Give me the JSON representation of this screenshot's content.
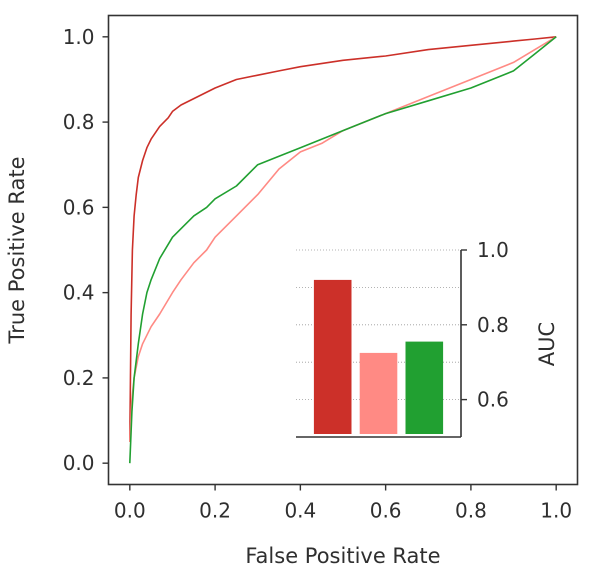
{
  "chart_data": [
    {
      "type": "line",
      "title": "",
      "xlabel": "False Positive Rate",
      "ylabel": "True Positive Rate",
      "xlim": [
        -0.05,
        1.05
      ],
      "ylim": [
        -0.05,
        1.05
      ],
      "x_ticks": [
        "0.0",
        "0.2",
        "0.4",
        "0.6",
        "0.8",
        "1.0"
      ],
      "y_ticks": [
        "0.0",
        "0.2",
        "0.4",
        "0.6",
        "0.8",
        "1.0"
      ],
      "grid": false,
      "legend": "none",
      "series": [
        {
          "color": "#cc3029",
          "x": [
            0,
            0.003,
            0.006,
            0.01,
            0.015,
            0.02,
            0.03,
            0.04,
            0.05,
            0.07,
            0.09,
            0.1,
            0.12,
            0.15,
            0.2,
            0.25,
            0.3,
            0.35,
            0.4,
            0.5,
            0.6,
            0.7,
            0.8,
            0.9,
            0.95,
            1.0
          ],
          "y": [
            0.05,
            0.35,
            0.5,
            0.58,
            0.63,
            0.67,
            0.71,
            0.74,
            0.76,
            0.79,
            0.81,
            0.825,
            0.84,
            0.855,
            0.88,
            0.9,
            0.91,
            0.92,
            0.93,
            0.945,
            0.955,
            0.97,
            0.98,
            0.99,
            0.995,
            1.0
          ]
        },
        {
          "color": "#ff8a84",
          "x": [
            0,
            0.005,
            0.01,
            0.02,
            0.03,
            0.05,
            0.07,
            0.1,
            0.12,
            0.15,
            0.18,
            0.2,
            0.25,
            0.3,
            0.35,
            0.4,
            0.45,
            0.5,
            0.6,
            0.7,
            0.8,
            0.9,
            0.95,
            1.0
          ],
          "y": [
            0.05,
            0.15,
            0.2,
            0.25,
            0.28,
            0.32,
            0.35,
            0.4,
            0.43,
            0.47,
            0.5,
            0.53,
            0.58,
            0.63,
            0.69,
            0.73,
            0.75,
            0.78,
            0.82,
            0.86,
            0.9,
            0.94,
            0.97,
            1.0
          ]
        },
        {
          "color": "#21a031",
          "x": [
            0,
            0.005,
            0.01,
            0.02,
            0.03,
            0.04,
            0.05,
            0.07,
            0.1,
            0.12,
            0.15,
            0.18,
            0.2,
            0.25,
            0.3,
            0.35,
            0.4,
            0.5,
            0.6,
            0.7,
            0.8,
            0.9,
            0.95,
            1.0
          ],
          "y": [
            0,
            0.12,
            0.2,
            0.28,
            0.35,
            0.4,
            0.43,
            0.48,
            0.53,
            0.55,
            0.58,
            0.6,
            0.62,
            0.65,
            0.7,
            0.72,
            0.74,
            0.78,
            0.82,
            0.85,
            0.88,
            0.92,
            0.96,
            1.0
          ]
        }
      ]
    },
    {
      "type": "bar",
      "title": "",
      "ylabel": "AUC",
      "ylim": [
        0.5,
        1.0
      ],
      "y_ticks": [
        "0.6",
        "0.8",
        "1.0"
      ],
      "grid": true,
      "legend": "none",
      "values": [
        0.92,
        0.725,
        0.755
      ],
      "colors": [
        "#cc3029",
        "#ff8a84",
        "#21a031"
      ]
    }
  ]
}
